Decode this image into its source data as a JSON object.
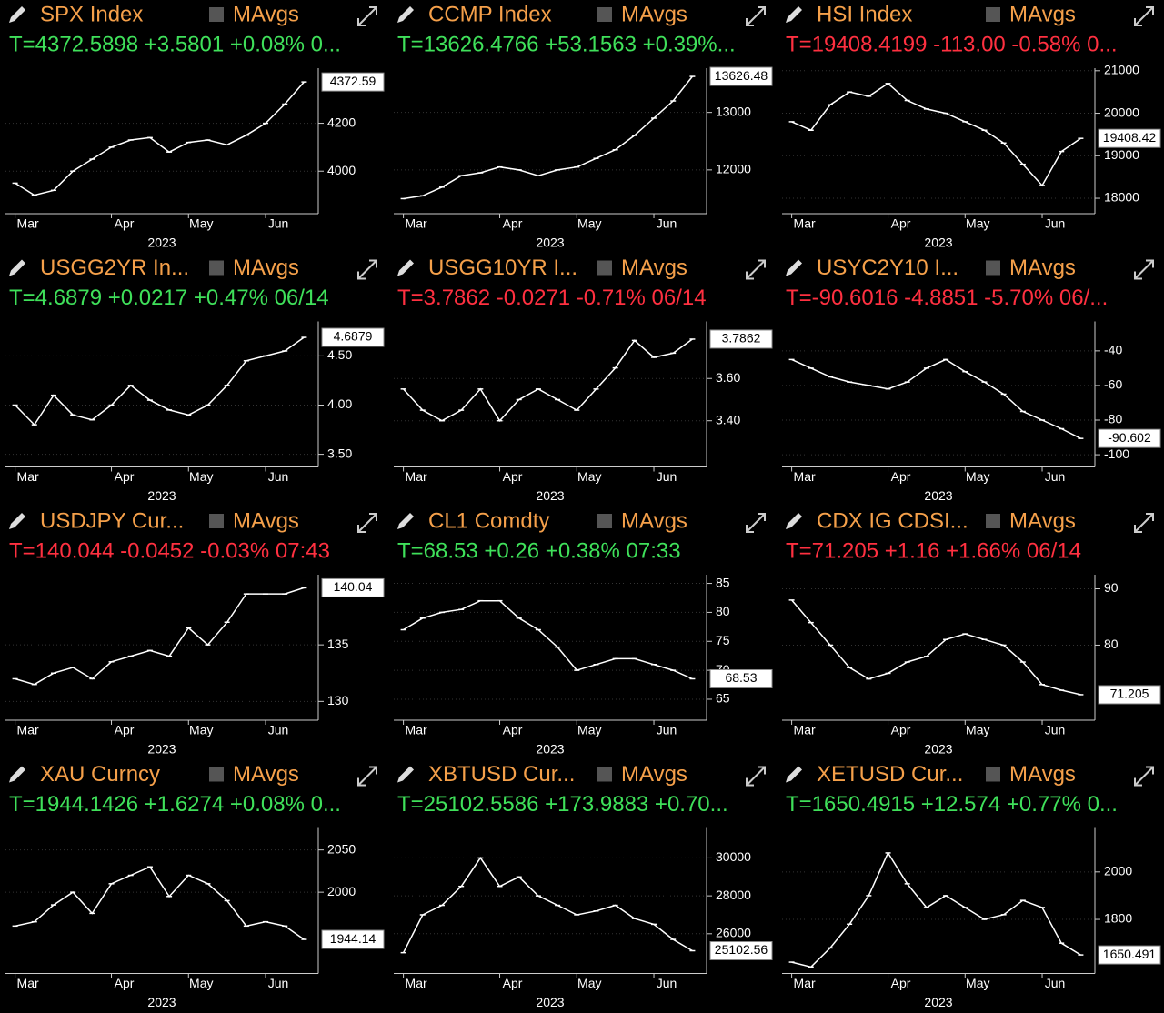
{
  "chart_data": [
    {
      "type": "line",
      "title": "SPX Index",
      "legend": "MAvgs",
      "quote": "T=4372.5898 +3.5801 +0.08% 0...",
      "quote_color": "#3fe05a",
      "title_color": "#f5a04a",
      "color": "#ffffff",
      "xlabel": "2023",
      "categories": [
        "Mar",
        null,
        null,
        null,
        null,
        "Apr",
        null,
        null,
        null,
        "May",
        null,
        null,
        null,
        "Jun",
        null,
        null
      ],
      "values": [
        3950,
        3900,
        3920,
        4000,
        4050,
        4100,
        4130,
        4140,
        4080,
        4120,
        4130,
        4110,
        4150,
        4200,
        4280,
        4372.59
      ],
      "ylim": [
        3830,
        4430
      ],
      "yticks": [
        4000,
        4200
      ]
    },
    {
      "type": "line",
      "title": "CCMP Index",
      "legend": "MAvgs",
      "quote": "T=13626.4766 +53.1563 +0.39%...",
      "quote_color": "#3fe05a",
      "title_color": "#f5a04a",
      "color": "#ffffff",
      "xlabel": "2023",
      "categories": [
        "Mar",
        null,
        null,
        null,
        null,
        "Apr",
        null,
        null,
        null,
        "May",
        null,
        null,
        null,
        "Jun",
        null,
        null
      ],
      "values": [
        11500,
        11550,
        11700,
        11900,
        11950,
        12050,
        12000,
        11900,
        12000,
        12050,
        12200,
        12350,
        12600,
        12900,
        13200,
        13626.48
      ],
      "ylim": [
        11270,
        13770
      ],
      "yticks": [
        12000,
        13000
      ]
    },
    {
      "type": "line",
      "title": "HSI Index",
      "legend": "MAvgs",
      "quote": "T=19408.4199 -113.00 -0.58% 0...",
      "quote_color": "#ff3040",
      "title_color": "#f5a04a",
      "color": "#ffffff",
      "xlabel": "2023",
      "categories": [
        "Mar",
        null,
        null,
        null,
        null,
        "Apr",
        null,
        null,
        null,
        "May",
        null,
        null,
        null,
        "Jun",
        null,
        null
      ],
      "values": [
        19800,
        19600,
        20200,
        20500,
        20400,
        20700,
        20300,
        20100,
        20000,
        19800,
        19600,
        19300,
        18800,
        18300,
        19100,
        19408.42
      ],
      "ylim": [
        17680,
        21060
      ],
      "yticks": [
        18000,
        19000,
        20000,
        21000
      ]
    },
    {
      "type": "line",
      "title": "USGG2YR In...",
      "legend": "MAvgs",
      "quote": "T=4.6879 +0.0217 +0.47% 06/14",
      "quote_color": "#3fe05a",
      "title_color": "#f5a04a",
      "color": "#ffffff",
      "xlabel": "2023",
      "categories": [
        "Mar",
        null,
        null,
        null,
        null,
        "Apr",
        null,
        null,
        null,
        "May",
        null,
        null,
        null,
        "Jun",
        null,
        null
      ],
      "values": [
        4.0,
        3.8,
        4.1,
        3.9,
        3.85,
        4.0,
        4.2,
        4.05,
        3.95,
        3.9,
        4.0,
        4.2,
        4.45,
        4.5,
        4.55,
        4.6879
      ],
      "ylim": [
        3.39,
        4.85
      ],
      "yticks": [
        {
          "value": 3.5,
          "label": "3.50"
        },
        {
          "value": 4,
          "label": "4.00"
        },
        {
          "value": 4.5,
          "label": "4.50"
        }
      ]
    },
    {
      "type": "line",
      "title": "USGG10YR I...",
      "legend": "MAvgs",
      "quote": "T=3.7862 -0.0271 -0.71% 06/14",
      "quote_color": "#ff3040",
      "title_color": "#f5a04a",
      "color": "#ffffff",
      "xlabel": "2023",
      "categories": [
        "Mar",
        null,
        null,
        null,
        null,
        "Apr",
        null,
        null,
        null,
        "May",
        null,
        null,
        null,
        "Jun",
        null,
        null
      ],
      "values": [
        3.55,
        3.45,
        3.4,
        3.45,
        3.55,
        3.4,
        3.5,
        3.55,
        3.5,
        3.45,
        3.55,
        3.65,
        3.78,
        3.7,
        3.72,
        3.7862
      ],
      "ylim": [
        3.19,
        3.87
      ],
      "yticks": [
        {
          "value": 3.4,
          "label": "3.40"
        },
        {
          "value": 3.6,
          "label": "3.60"
        }
      ]
    },
    {
      "type": "line",
      "title": "USYC2Y10 I...",
      "legend": "MAvgs",
      "quote": "T=-90.6016 -4.8851 -5.70% 06/...",
      "quote_color": "#ff3040",
      "title_color": "#f5a04a",
      "color": "#ffffff",
      "xlabel": "2023",
      "categories": [
        "Mar",
        null,
        null,
        null,
        null,
        "Apr",
        null,
        null,
        null,
        "May",
        null,
        null,
        null,
        "Jun",
        null,
        null
      ],
      "values": [
        -45,
        -50,
        -55,
        -58,
        -60,
        -62,
        -58,
        -50,
        -45,
        -52,
        -58,
        -65,
        -75,
        -80,
        -85,
        -90.602
      ],
      "ylim": [
        -106,
        -23
      ],
      "yticks": [
        -100,
        -80,
        -60,
        -40
      ]
    },
    {
      "type": "line",
      "title": "USDJPY Cur...",
      "legend": "MAvgs",
      "quote": "T=140.044 -0.0452 -0.03% 07:43",
      "quote_color": "#ff3040",
      "title_color": "#f5a04a",
      "color": "#ffffff",
      "xlabel": "2023",
      "categories": [
        "Mar",
        null,
        null,
        null,
        null,
        "Apr",
        null,
        null,
        null,
        "May",
        null,
        null,
        null,
        "Jun",
        null,
        null
      ],
      "values": [
        132,
        131.5,
        132.5,
        133,
        132,
        133.5,
        134,
        134.5,
        134,
        136.5,
        135,
        137,
        139.5,
        139.5,
        139.5,
        140.04
      ],
      "ylim": [
        128.5,
        141.2
      ],
      "yticks": [
        130,
        135
      ]
    },
    {
      "type": "line",
      "title": "CL1 Comdty",
      "legend": "MAvgs",
      "quote": "T=68.53 +0.26 +0.38% 07:33",
      "quote_color": "#3fe05a",
      "title_color": "#f5a04a",
      "color": "#ffffff",
      "xlabel": "2023",
      "categories": [
        "Mar",
        null,
        null,
        null,
        null,
        "Apr",
        null,
        null,
        null,
        "May",
        null,
        null,
        null,
        "Jun",
        null,
        null
      ],
      "values": [
        77,
        79,
        80,
        80.5,
        82,
        82,
        79,
        77,
        74,
        70,
        71,
        72,
        72,
        71,
        70,
        68.53
      ],
      "ylim": [
        61.7,
        86.5
      ],
      "yticks": [
        65,
        70,
        75,
        80,
        85
      ]
    },
    {
      "type": "line",
      "title": "CDX IG CDSI...",
      "legend": "MAvgs",
      "quote": "T=71.205 +1.16 +1.66% 06/14",
      "quote_color": "#ff3040",
      "title_color": "#f5a04a",
      "color": "#ffffff",
      "xlabel": "2023",
      "categories": [
        "Mar",
        null,
        null,
        null,
        null,
        "Apr",
        null,
        null,
        null,
        "May",
        null,
        null,
        null,
        "Jun",
        null,
        null
      ],
      "values": [
        88,
        84,
        80,
        76,
        74,
        75,
        77,
        78,
        81,
        82,
        81,
        80,
        77,
        73,
        72,
        71.205
      ],
      "ylim": [
        67,
        92.5
      ],
      "yticks": [
        80,
        90
      ]
    },
    {
      "type": "line",
      "title": "XAU Curncy",
      "legend": "MAvgs",
      "quote": "T=1944.1426 +1.6274 +0.08% 0...",
      "quote_color": "#3fe05a",
      "title_color": "#f5a04a",
      "color": "#ffffff",
      "xlabel": "2023",
      "categories": [
        "Mar",
        null,
        null,
        null,
        null,
        "Apr",
        null,
        null,
        null,
        "May",
        null,
        null,
        null,
        "Jun",
        null,
        null
      ],
      "values": [
        1960,
        1965,
        1985,
        2000,
        1975,
        2010,
        2020,
        2030,
        1995,
        2020,
        2010,
        1990,
        1960,
        1965,
        1960,
        1944.14
      ],
      "ylim": [
        1906,
        2076
      ],
      "yticks": [
        2000,
        2050
      ]
    },
    {
      "type": "line",
      "title": "XBTUSD Cur...",
      "legend": "MAvgs",
      "quote": "T=25102.5586 +173.9883 +0.70...",
      "quote_color": "#3fe05a",
      "title_color": "#f5a04a",
      "color": "#ffffff",
      "xlabel": "2023",
      "categories": [
        "Mar",
        null,
        null,
        null,
        null,
        "Apr",
        null,
        null,
        null,
        "May",
        null,
        null,
        null,
        "Jun",
        null,
        null
      ],
      "values": [
        25000,
        27000,
        27500,
        28500,
        30000,
        28500,
        29000,
        28000,
        27500,
        27000,
        27200,
        27500,
        26800,
        26500,
        25700,
        25102.56
      ],
      "ylim": [
        24000,
        31580
      ],
      "yticks": [
        26000,
        28000,
        30000
      ]
    },
    {
      "type": "line",
      "title": "XETUSD Cur...",
      "legend": "MAvgs",
      "quote": "T=1650.4915 +12.574 +0.77% 0...",
      "quote_color": "#3fe05a",
      "title_color": "#f5a04a",
      "color": "#ffffff",
      "xlabel": "2023",
      "categories": [
        "Mar",
        null,
        null,
        null,
        null,
        "Apr",
        null,
        null,
        null,
        "May",
        null,
        null,
        null,
        "Jun",
        null,
        null
      ],
      "values": [
        1620,
        1600,
        1680,
        1780,
        1900,
        2080,
        1950,
        1850,
        1900,
        1850,
        1800,
        1820,
        1880,
        1850,
        1700,
        1650.491
      ],
      "ylim": [
        1580,
        2185
      ],
      "yticks": [
        1800,
        2000
      ]
    }
  ]
}
